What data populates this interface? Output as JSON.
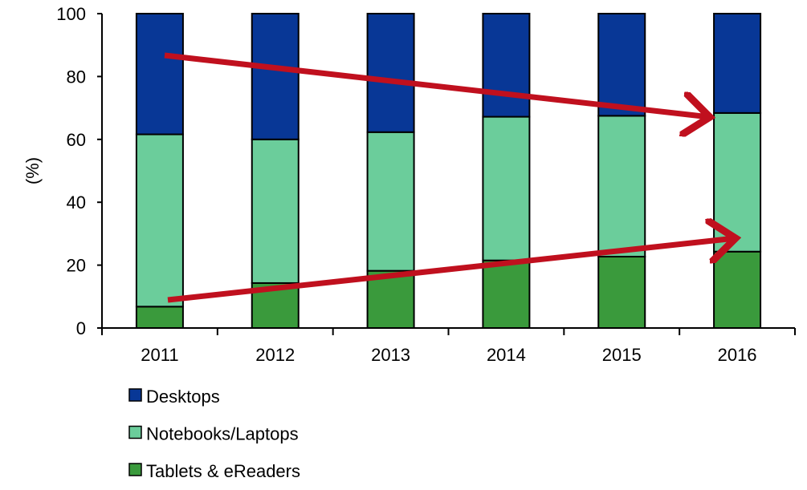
{
  "chart_data": {
    "type": "bar",
    "stacked": true,
    "title": "",
    "xlabel": "",
    "ylabel": "(%)",
    "ylim": [
      0,
      100
    ],
    "yticks": [
      0,
      20,
      40,
      60,
      80,
      100
    ],
    "categories": [
      "2011",
      "2012",
      "2013",
      "2014",
      "2015",
      "2016"
    ],
    "series": [
      {
        "name": "Tablets & eReaders",
        "color": "#3a9a3c",
        "values": [
          6.8,
          14.3,
          18.2,
          21.5,
          22.7,
          24.3
        ]
      },
      {
        "name": "Notebooks/Laptops",
        "color": "#6bcd9b",
        "values": [
          54.8,
          45.7,
          44.1,
          45.7,
          44.8,
          44.1
        ]
      },
      {
        "name": "Desktops",
        "color": "#083796",
        "values": [
          38.4,
          40.0,
          37.7,
          32.8,
          32.5,
          31.6
        ]
      }
    ],
    "legend_order": [
      "Desktops",
      "Notebooks/Laptops",
      "Tablets & eReaders"
    ],
    "legend_position": "bottom-left",
    "annotations": [
      {
        "type": "arrow",
        "color": "#c0101e",
        "description_series": "Desktops",
        "direction": "down"
      },
      {
        "type": "arrow",
        "color": "#c0101e",
        "description_series": "Tablets & eReaders",
        "direction": "up"
      }
    ],
    "grid": false
  }
}
